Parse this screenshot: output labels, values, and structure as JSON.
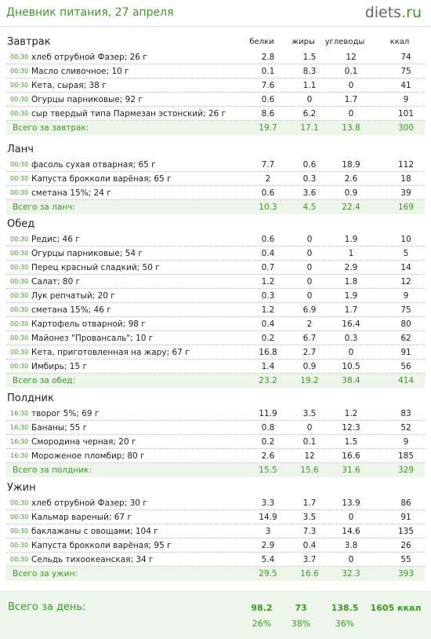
{
  "header": {
    "title": "Дневник питания, 27 апреля",
    "logo_main": "diets",
    "logo_tld": ".ru"
  },
  "columns": {
    "protein": "белки",
    "fat": "жиры",
    "carbs": "углеводы",
    "kcal": "ккал"
  },
  "meals": [
    {
      "title": "Завтрак",
      "items": [
        {
          "time": "00:30",
          "name": "хлеб отрубной Фазер; 26 г",
          "p": "2.8",
          "f": "1.5",
          "c": "12",
          "k": "74"
        },
        {
          "time": "00:30",
          "name": "Масло сливочное; 10 г",
          "p": "0.1",
          "f": "8.3",
          "c": "0.1",
          "k": "75"
        },
        {
          "time": "00:30",
          "name": "Кета, сырая; 38 г",
          "p": "7.6",
          "f": "1.1",
          "c": "0",
          "k": "41"
        },
        {
          "time": "00:30",
          "name": "Огурцы парниковые; 92 г",
          "p": "0.6",
          "f": "0",
          "c": "1.7",
          "k": "9"
        },
        {
          "time": "00:30",
          "name": "сыр твердый типа Пармезан эстонский; 26 г",
          "p": "8.6",
          "f": "6.2",
          "c": "0",
          "k": "101"
        }
      ],
      "total": {
        "label": "Всего за завтрак:",
        "p": "19.7",
        "f": "17.1",
        "c": "13.8",
        "k": "300"
      }
    },
    {
      "title": "Ланч",
      "items": [
        {
          "time": "00:30",
          "name": "фасоль сухая отварная; 65 г",
          "p": "7.7",
          "f": "0.6",
          "c": "18.9",
          "k": "112"
        },
        {
          "time": "00:30",
          "name": "Капуста брокколи варёная; 65 г",
          "p": "2",
          "f": "0.3",
          "c": "2.6",
          "k": "18"
        },
        {
          "time": "00:30",
          "name": "сметана 15%; 24 г",
          "p": "0.6",
          "f": "3.6",
          "c": "0.9",
          "k": "39"
        }
      ],
      "total": {
        "label": "Всего за ланч:",
        "p": "10.3",
        "f": "4.5",
        "c": "22.4",
        "k": "169"
      }
    },
    {
      "title": "Обед",
      "items": [
        {
          "time": "00:30",
          "name": "Редис; 46 г",
          "p": "0.6",
          "f": "0",
          "c": "1.9",
          "k": "10"
        },
        {
          "time": "00:30",
          "name": "Огурцы парниковые; 54 г",
          "p": "0.4",
          "f": "0",
          "c": "1",
          "k": "5"
        },
        {
          "time": "00:30",
          "name": "Перец красный сладкий; 50 г",
          "p": "0.7",
          "f": "0",
          "c": "2.9",
          "k": "14"
        },
        {
          "time": "00:30",
          "name": "Салат; 80 г",
          "p": "1.2",
          "f": "0",
          "c": "1.8",
          "k": "12"
        },
        {
          "time": "00:30",
          "name": "Лук репчатый; 20 г",
          "p": "0.3",
          "f": "0",
          "c": "1.9",
          "k": "9"
        },
        {
          "time": "00:30",
          "name": "сметана 15%; 46 г",
          "p": "1.2",
          "f": "6.9",
          "c": "1.7",
          "k": "75"
        },
        {
          "time": "00:30",
          "name": "Картофель отварной; 98 г",
          "p": "0.4",
          "f": "2",
          "c": "16.4",
          "k": "80"
        },
        {
          "time": "00:30",
          "name": "Майонез \"Провансаль\"; 10 г",
          "p": "0.2",
          "f": "6.7",
          "c": "0.3",
          "k": "62"
        },
        {
          "time": "00:30",
          "name": "Кета, приготовленная на жару; 67 г",
          "p": "16.8",
          "f": "2.7",
          "c": "0",
          "k": "91"
        },
        {
          "time": "00:30",
          "name": "Имбирь; 15 г",
          "p": "1.4",
          "f": "0.9",
          "c": "10.5",
          "k": "56"
        }
      ],
      "total": {
        "label": "Всего за обед:",
        "p": "23.2",
        "f": "19.2",
        "c": "38.4",
        "k": "414"
      }
    },
    {
      "title": "Полдник",
      "items": [
        {
          "time": "16:30",
          "name": "творог 5%; 69 г",
          "p": "11.9",
          "f": "3.5",
          "c": "1.2",
          "k": "83"
        },
        {
          "time": "16:30",
          "name": "Бананы; 55 г",
          "p": "0.8",
          "f": "0",
          "c": "12.3",
          "k": "52"
        },
        {
          "time": "16:30",
          "name": "Смородина черная; 20 г",
          "p": "0.2",
          "f": "0.1",
          "c": "1.5",
          "k": "9"
        },
        {
          "time": "16:30",
          "name": "Мороженое пломбир; 80 г",
          "p": "2.6",
          "f": "12",
          "c": "16.6",
          "k": "185"
        }
      ],
      "total": {
        "label": "Всего за полдник:",
        "p": "15.5",
        "f": "15.6",
        "c": "31.6",
        "k": "329"
      }
    },
    {
      "title": "Ужин",
      "items": [
        {
          "time": "00:30",
          "name": "хлеб отрубной Фазер; 30 г",
          "p": "3.3",
          "f": "1.7",
          "c": "13.9",
          "k": "86"
        },
        {
          "time": "00:30",
          "name": "Кальмар вареный; 67 г",
          "p": "14.9",
          "f": "3.5",
          "c": "0",
          "k": "91"
        },
        {
          "time": "00:30",
          "name": "баклажаны с овощами; 104 г",
          "p": "3",
          "f": "7.3",
          "c": "14.6",
          "k": "135"
        },
        {
          "time": "00:30",
          "name": "Капуста брокколи варёная; 95 г",
          "p": "2.9",
          "f": "0.4",
          "c": "3.8",
          "k": "26"
        },
        {
          "time": "00:30",
          "name": "Сельдь тихоокеанская; 34 г",
          "p": "5.4",
          "f": "3.7",
          "c": "0",
          "k": "55"
        }
      ],
      "total": {
        "label": "Всего за ужин:",
        "p": "29.5",
        "f": "16.6",
        "c": "32.3",
        "k": "393"
      }
    }
  ],
  "day_total": {
    "label": "Всего за день:",
    "p": "98.2",
    "f": "73",
    "c": "138.5",
    "k": "1605 ккал",
    "p_pct": "26%",
    "f_pct": "38%",
    "c_pct": "36%"
  },
  "colors": {
    "accent": "#3a9a24",
    "total_bg": "#edf5ea"
  }
}
